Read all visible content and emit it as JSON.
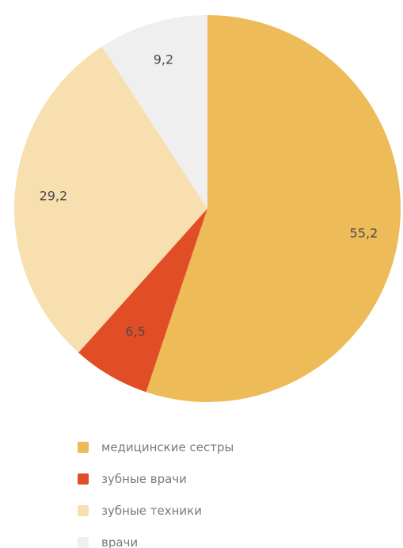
{
  "chart_data": {
    "type": "pie",
    "slices": [
      {
        "label": "медицинские сестры",
        "value": 55.2,
        "value_label": "55,2",
        "color": "#EDBB58"
      },
      {
        "label": "зубные врачи",
        "value": 6.5,
        "value_label": "6,5",
        "color": "#E14E25"
      },
      {
        "label": "зубные техники",
        "value": 29.2,
        "value_label": "29,2",
        "color": "#F7DFB0"
      },
      {
        "label": "врачи",
        "value": 9.2,
        "value_label": "9,2",
        "color": "#EFEFEF"
      }
    ],
    "start_angle": "12 o'clock",
    "direction": "clockwise",
    "legend_position": "bottom"
  }
}
